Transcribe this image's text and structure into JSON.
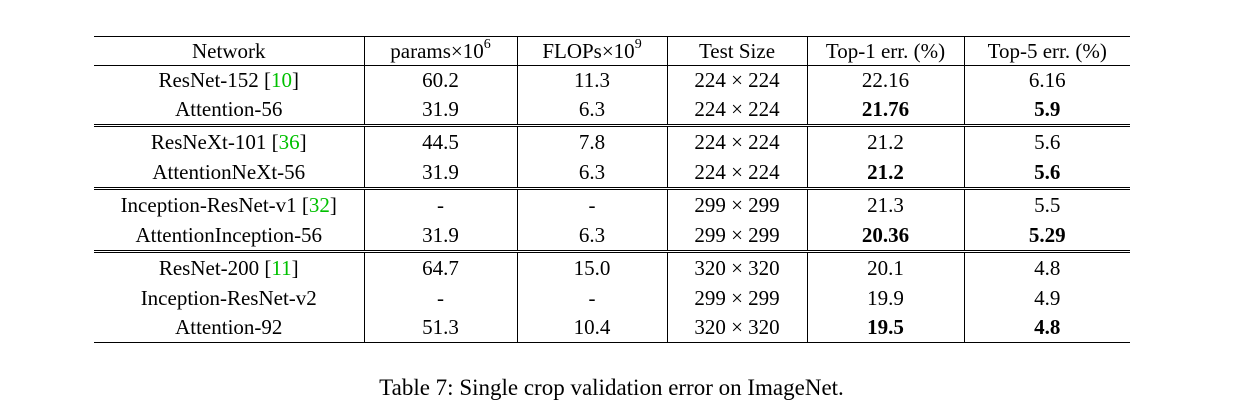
{
  "table": {
    "headers": {
      "network": "Network",
      "params": "params×10",
      "params_exp": "6",
      "flops": "FLOPs×10",
      "flops_exp": "9",
      "test_size": "Test Size",
      "top1": "Top-1 err. (%)",
      "top5": "Top-5 err. (%)"
    },
    "groups": [
      {
        "rows": [
          {
            "network": "ResNet-152 [",
            "cite": "10",
            "cite_close": "]",
            "params": "60.2",
            "flops": "11.3",
            "test_size": "224 × 224",
            "top1": "22.16",
            "top5": "6.16",
            "top1_bold": false,
            "top5_bold": false
          },
          {
            "network": "Attention-56",
            "cite": "",
            "cite_close": "",
            "params": "31.9",
            "flops": "6.3",
            "test_size": "224 × 224",
            "top1": "21.76",
            "top5": "5.9",
            "top1_bold": true,
            "top5_bold": true
          }
        ]
      },
      {
        "rows": [
          {
            "network": "ResNeXt-101  [",
            "cite": "36",
            "cite_close": "]",
            "params": "44.5",
            "flops": "7.8",
            "test_size": "224 × 224",
            "top1": "21.2",
            "top5": "5.6",
            "top1_bold": false,
            "top5_bold": false
          },
          {
            "network": "AttentionNeXt-56",
            "cite": "",
            "cite_close": "",
            "params": "31.9",
            "flops": "6.3",
            "test_size": "224 × 224",
            "top1": "21.2",
            "top5": "5.6",
            "top1_bold": true,
            "top5_bold": true
          }
        ]
      },
      {
        "rows": [
          {
            "network": "Inception-ResNet-v1 [",
            "cite": "32",
            "cite_close": "]",
            "params": "-",
            "flops": "-",
            "test_size": "299 × 299",
            "top1": "21.3",
            "top5": "5.5",
            "top1_bold": false,
            "top5_bold": false
          },
          {
            "network": "AttentionInception-56",
            "cite": "",
            "cite_close": "",
            "params": "31.9",
            "flops": "6.3",
            "test_size": "299 × 299",
            "top1": "20.36",
            "top5": "5.29",
            "top1_bold": true,
            "top5_bold": true
          }
        ]
      },
      {
        "rows": [
          {
            "network": "ResNet-200 [",
            "cite": "11",
            "cite_close": "]",
            "params": "64.7",
            "flops": "15.0",
            "test_size": "320 × 320",
            "top1": "20.1",
            "top5": "4.8",
            "top1_bold": false,
            "top5_bold": false
          },
          {
            "network": "Inception-ResNet-v2",
            "cite": "",
            "cite_close": "",
            "params": "-",
            "flops": "-",
            "test_size": "299 × 299",
            "top1": "19.9",
            "top5": "4.9",
            "top1_bold": false,
            "top5_bold": false
          },
          {
            "network": "Attention-92",
            "cite": "",
            "cite_close": "",
            "params": "51.3",
            "flops": "10.4",
            "test_size": "320 × 320",
            "top1": "19.5",
            "top5": "4.8",
            "top1_bold": true,
            "top5_bold": true
          }
        ]
      }
    ]
  },
  "caption": "Table 7: Single crop validation error on ImageNet.",
  "colors": {
    "citation": "#00c000",
    "text": "#000000"
  }
}
